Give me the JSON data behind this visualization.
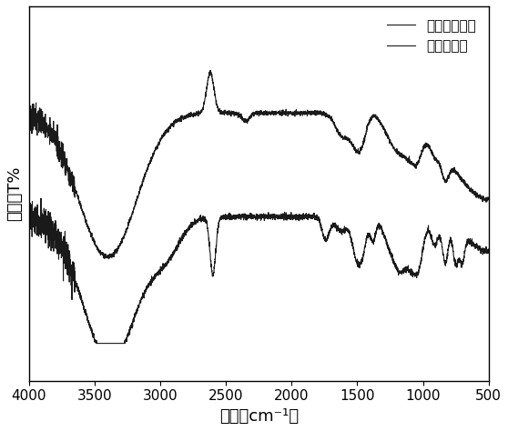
{
  "title": "",
  "xlabel": "波数（cm⁻¹）",
  "ylabel": "透过率T%",
  "xmin": 500,
  "xmax": 4000,
  "legend_labels": [
    "未使用催化剂",
    "使用催化剂"
  ],
  "line_color": "#1a1a1a",
  "background_color": "#ffffff",
  "tick_fontsize": 11,
  "label_fontsize": 13,
  "legend_fontsize": 11
}
